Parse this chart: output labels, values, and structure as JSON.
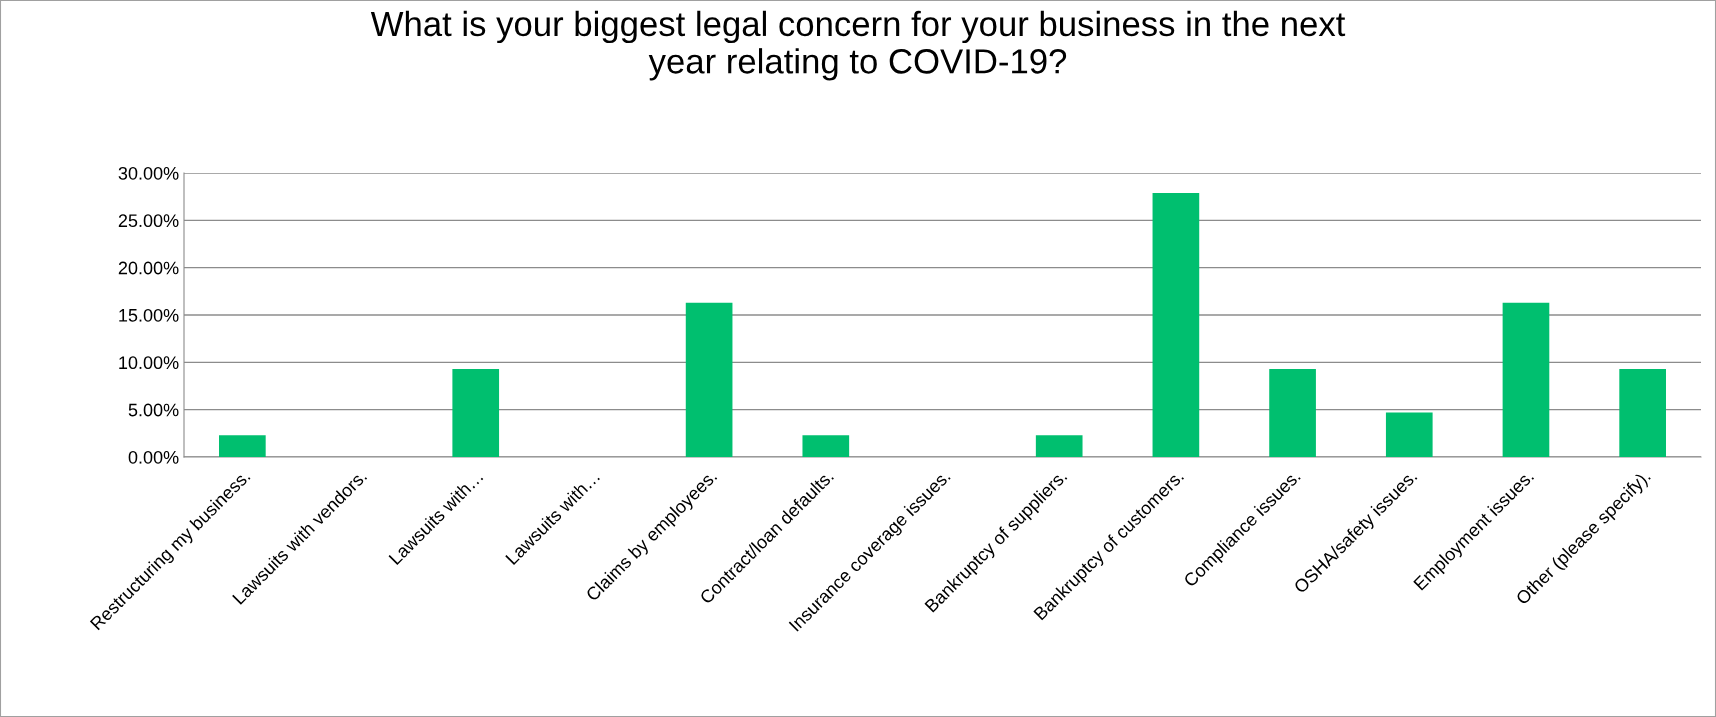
{
  "chart_data": {
    "type": "bar",
    "title": "What is your biggest legal concern for your business in the next\nyear relating to COVID-19?",
    "categories": [
      "Restructuring my business.",
      "Lawsuits with vendors.",
      "Lawsuits with…",
      "Lawsuits with…",
      "Claims by employees.",
      "Contract/loan defaults.",
      "Insurance coverage issues.",
      "Bankruptcy of suppliers.",
      "Bankruptcy of customers.",
      "Compliance issues.",
      "OSHA/safety issues.",
      "Employment issues.",
      "Other (please specify)."
    ],
    "values": [
      2.3,
      0,
      9.3,
      0,
      16.3,
      2.3,
      0,
      2.3,
      27.9,
      9.3,
      4.7,
      16.3,
      9.3
    ],
    "color": "#00bf6f",
    "ylim": [
      0,
      30
    ],
    "yticks": [
      {
        "value": 0,
        "label": "0.00%"
      },
      {
        "value": 5,
        "label": "5.00%"
      },
      {
        "value": 10,
        "label": "10.00%"
      },
      {
        "value": 15,
        "label": "15.00%"
      },
      {
        "value": 20,
        "label": "20.00%"
      },
      {
        "value": 25,
        "label": "25.00%"
      },
      {
        "value": 30,
        "label": "30.00%"
      }
    ],
    "grid": "y"
  }
}
